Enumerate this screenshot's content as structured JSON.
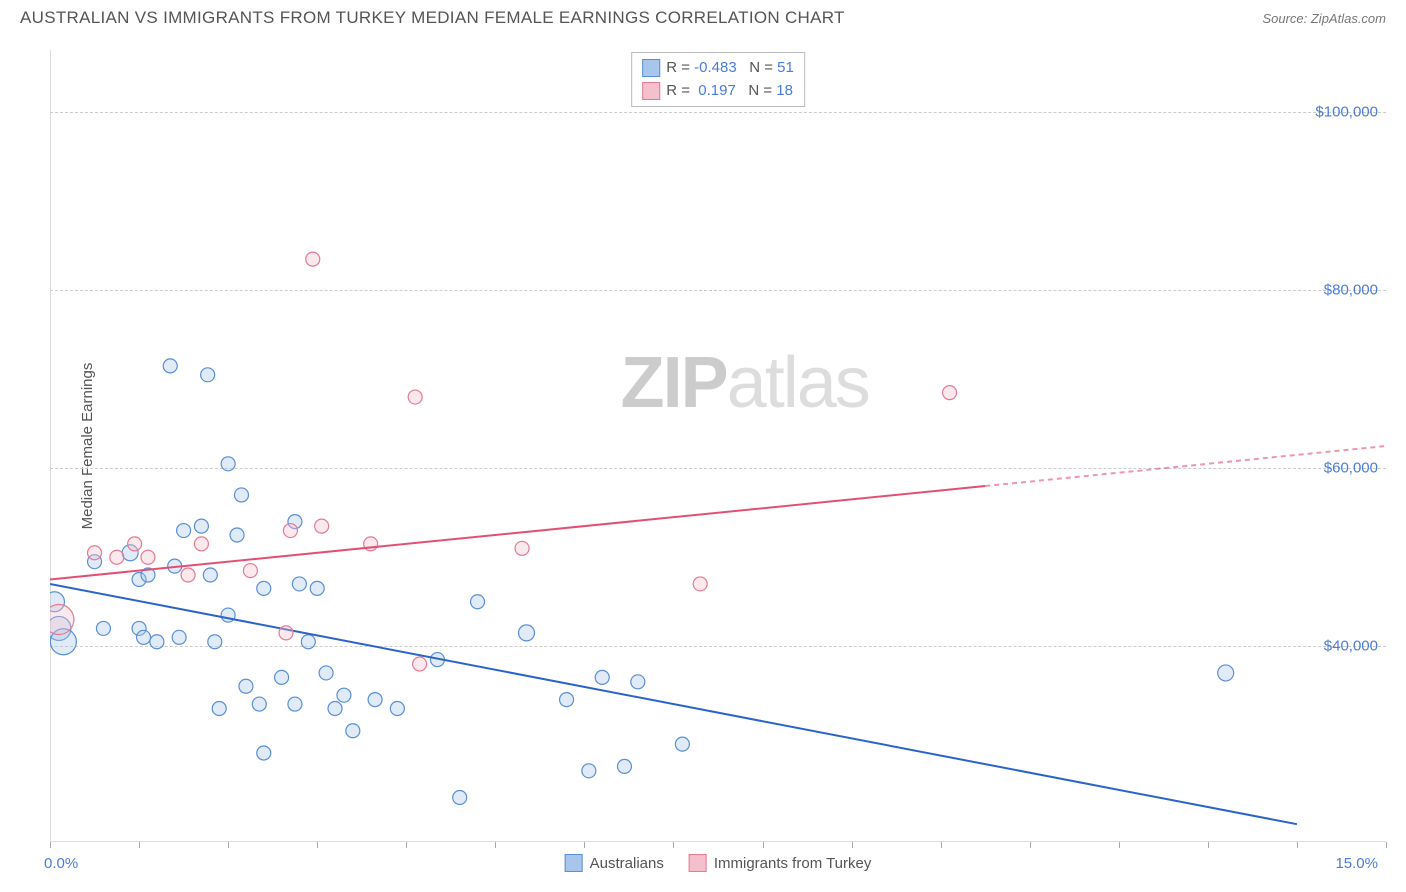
{
  "header": {
    "title": "AUSTRALIAN VS IMMIGRANTS FROM TURKEY MEDIAN FEMALE EARNINGS CORRELATION CHART",
    "source_prefix": "Source: ",
    "source_name": "ZipAtlas.com"
  },
  "chart": {
    "type": "scatter",
    "y_axis_label": "Median Female Earnings",
    "x_min": 0.0,
    "x_max": 15.0,
    "y_min": 18000,
    "y_max": 107000,
    "x_tick_start_label": "0.0%",
    "x_tick_end_label": "15.0%",
    "x_tick_positions": [
      0,
      1,
      2,
      3,
      4,
      5,
      6,
      7,
      8,
      9,
      10,
      11,
      12,
      13,
      14,
      15
    ],
    "y_ticks": [
      {
        "value": 40000,
        "label": "$40,000"
      },
      {
        "value": 60000,
        "label": "$60,000"
      },
      {
        "value": 80000,
        "label": "$80,000"
      },
      {
        "value": 100000,
        "label": "$100,000"
      }
    ],
    "grid_color": "#cccccc",
    "background_color": "#ffffff",
    "series": [
      {
        "name": "Australians",
        "color_fill": "#a8c5ec",
        "color_stroke": "#5a8fd6",
        "r_label": "R = ",
        "r_value": "-0.483",
        "n_label": "N = ",
        "n_value": "51",
        "trend": {
          "x1": 0.0,
          "y1": 47000,
          "x2": 14.0,
          "y2": 20000,
          "stroke": "#2a63c9",
          "width": 2
        },
        "points": [
          {
            "x": 0.05,
            "y": 45000,
            "r": 10
          },
          {
            "x": 0.1,
            "y": 42000,
            "r": 12
          },
          {
            "x": 0.15,
            "y": 40500,
            "r": 13
          },
          {
            "x": 0.5,
            "y": 49500,
            "r": 7
          },
          {
            "x": 0.6,
            "y": 42000,
            "r": 7
          },
          {
            "x": 0.9,
            "y": 50500,
            "r": 8
          },
          {
            "x": 1.0,
            "y": 47500,
            "r": 7
          },
          {
            "x": 1.0,
            "y": 42000,
            "r": 7
          },
          {
            "x": 1.05,
            "y": 41000,
            "r": 7
          },
          {
            "x": 1.1,
            "y": 48000,
            "r": 7
          },
          {
            "x": 1.2,
            "y": 40500,
            "r": 7
          },
          {
            "x": 1.35,
            "y": 71500,
            "r": 7
          },
          {
            "x": 1.4,
            "y": 49000,
            "r": 7
          },
          {
            "x": 1.45,
            "y": 41000,
            "r": 7
          },
          {
            "x": 1.5,
            "y": 53000,
            "r": 7
          },
          {
            "x": 1.7,
            "y": 53500,
            "r": 7
          },
          {
            "x": 1.77,
            "y": 70500,
            "r": 7
          },
          {
            "x": 1.8,
            "y": 48000,
            "r": 7
          },
          {
            "x": 1.85,
            "y": 40500,
            "r": 7
          },
          {
            "x": 1.9,
            "y": 33000,
            "r": 7
          },
          {
            "x": 2.0,
            "y": 60500,
            "r": 7
          },
          {
            "x": 2.0,
            "y": 43500,
            "r": 7
          },
          {
            "x": 2.1,
            "y": 52500,
            "r": 7
          },
          {
            "x": 2.15,
            "y": 57000,
            "r": 7
          },
          {
            "x": 2.2,
            "y": 35500,
            "r": 7
          },
          {
            "x": 2.35,
            "y": 33500,
            "r": 7
          },
          {
            "x": 2.4,
            "y": 28000,
            "r": 7
          },
          {
            "x": 2.4,
            "y": 46500,
            "r": 7
          },
          {
            "x": 2.6,
            "y": 36500,
            "r": 7
          },
          {
            "x": 2.75,
            "y": 33500,
            "r": 7
          },
          {
            "x": 2.75,
            "y": 54000,
            "r": 7
          },
          {
            "x": 2.8,
            "y": 47000,
            "r": 7
          },
          {
            "x": 2.9,
            "y": 40500,
            "r": 7
          },
          {
            "x": 3.0,
            "y": 46500,
            "r": 7
          },
          {
            "x": 3.1,
            "y": 37000,
            "r": 7
          },
          {
            "x": 3.2,
            "y": 33000,
            "r": 7
          },
          {
            "x": 3.3,
            "y": 34500,
            "r": 7
          },
          {
            "x": 3.4,
            "y": 30500,
            "r": 7
          },
          {
            "x": 3.65,
            "y": 34000,
            "r": 7
          },
          {
            "x": 3.9,
            "y": 33000,
            "r": 7
          },
          {
            "x": 4.35,
            "y": 38500,
            "r": 7
          },
          {
            "x": 4.6,
            "y": 23000,
            "r": 7
          },
          {
            "x": 4.8,
            "y": 45000,
            "r": 7
          },
          {
            "x": 5.35,
            "y": 41500,
            "r": 8
          },
          {
            "x": 5.8,
            "y": 34000,
            "r": 7
          },
          {
            "x": 6.05,
            "y": 26000,
            "r": 7
          },
          {
            "x": 6.2,
            "y": 36500,
            "r": 7
          },
          {
            "x": 6.45,
            "y": 26500,
            "r": 7
          },
          {
            "x": 6.6,
            "y": 36000,
            "r": 7
          },
          {
            "x": 7.1,
            "y": 29000,
            "r": 7
          },
          {
            "x": 13.2,
            "y": 37000,
            "r": 8
          }
        ]
      },
      {
        "name": "Immigrants from Turkey",
        "color_fill": "#f3c0cb",
        "color_stroke": "#e67a95",
        "r_label": "R = ",
        "r_value": " 0.197",
        "n_label": "N = ",
        "n_value": "18",
        "trend": {
          "x1": 0.0,
          "y1": 47500,
          "x2": 10.5,
          "y2": 58000,
          "stroke": "#e15074",
          "width": 2,
          "dash_from_x": 10.5,
          "dash_to_x": 15.0,
          "dash_to_y": 62500
        },
        "points": [
          {
            "x": 0.1,
            "y": 43000,
            "r": 15
          },
          {
            "x": 0.5,
            "y": 50500,
            "r": 7
          },
          {
            "x": 0.75,
            "y": 50000,
            "r": 7
          },
          {
            "x": 0.95,
            "y": 51500,
            "r": 7
          },
          {
            "x": 1.1,
            "y": 50000,
            "r": 7
          },
          {
            "x": 1.55,
            "y": 48000,
            "r": 7
          },
          {
            "x": 1.7,
            "y": 51500,
            "r": 7
          },
          {
            "x": 2.25,
            "y": 48500,
            "r": 7
          },
          {
            "x": 2.65,
            "y": 41500,
            "r": 7
          },
          {
            "x": 2.7,
            "y": 53000,
            "r": 7
          },
          {
            "x": 2.95,
            "y": 83500,
            "r": 7
          },
          {
            "x": 3.05,
            "y": 53500,
            "r": 7
          },
          {
            "x": 3.6,
            "y": 51500,
            "r": 7
          },
          {
            "x": 4.1,
            "y": 68000,
            "r": 7
          },
          {
            "x": 4.15,
            "y": 38000,
            "r": 7
          },
          {
            "x": 5.3,
            "y": 51000,
            "r": 7
          },
          {
            "x": 7.3,
            "y": 47000,
            "r": 7
          },
          {
            "x": 10.1,
            "y": 68500,
            "r": 7
          }
        ]
      }
    ],
    "bottom_legend": [
      {
        "swatch_fill": "#a8c5ec",
        "swatch_stroke": "#5a8fd6",
        "label": "Australians"
      },
      {
        "swatch_fill": "#f3c0cb",
        "swatch_stroke": "#e67a95",
        "label": "Immigrants from Turkey"
      }
    ],
    "watermark": {
      "bold": "ZIP",
      "rest": "atlas"
    }
  }
}
